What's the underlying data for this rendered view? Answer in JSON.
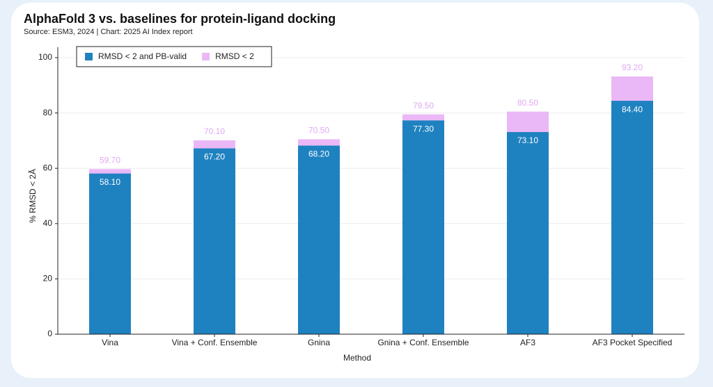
{
  "chart_data": {
    "type": "bar",
    "title": "AlphaFold 3 vs. baselines for protein-ligand docking",
    "subtitle": "Source: ESM3, 2024 | Chart: 2025 AI Index report",
    "x_label": "Method",
    "y_label": "% RMSD < 2Å",
    "categories": [
      "Vina",
      "Vina + Conf. Ensemble",
      "Gnina",
      "Gnina + Conf. Ensemble",
      "AF3",
      "AF3 Pocket Specified"
    ],
    "series": [
      {
        "name": "RMSD < 2 and PB-valid",
        "color": "#1f82c0",
        "values": [
          58.1,
          67.2,
          68.2,
          77.3,
          73.1,
          84.4
        ],
        "value_labels": [
          "58.10",
          "67.20",
          "68.20",
          "77.30",
          "73.10",
          "84.40"
        ]
      },
      {
        "name": "RMSD < 2",
        "color": "#eab8f7",
        "values": [
          59.7,
          70.1,
          70.5,
          79.5,
          80.5,
          93.2
        ],
        "value_labels": [
          "59.70",
          "70.10",
          "70.50",
          "79.50",
          "80.50",
          "93.20"
        ]
      }
    ],
    "ylim": [
      0,
      100
    ],
    "yticks": [
      0,
      20,
      40,
      60,
      80,
      100
    ],
    "grid": true,
    "legend": "upper left"
  }
}
